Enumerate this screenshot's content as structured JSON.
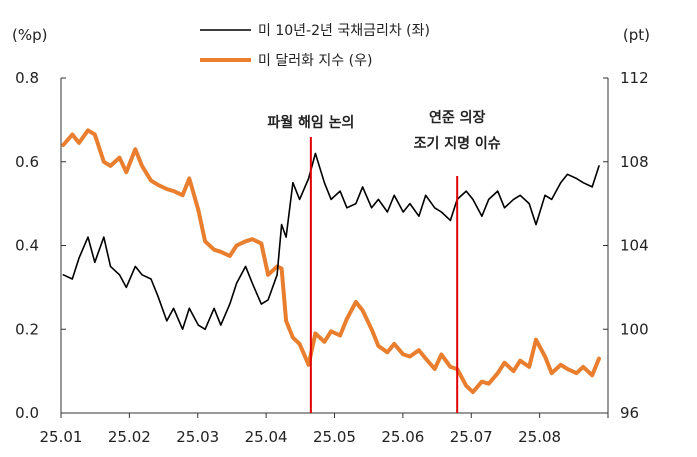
{
  "chart_data": {
    "type": "line",
    "left_unit": "(%p)",
    "right_unit": "(pt)",
    "x_tick_labels": [
      "25.01",
      "25.02",
      "25.03",
      "25.04",
      "25.05",
      "25.06",
      "25.07",
      "25.08"
    ],
    "y_left": {
      "min": 0.0,
      "max": 0.8,
      "ticks": [
        0.0,
        0.2,
        0.4,
        0.6,
        0.8
      ],
      "labels": [
        "0.0",
        "0.2",
        "0.4",
        "0.6",
        "0.8"
      ]
    },
    "y_right": {
      "min": 96,
      "max": 112,
      "ticks": [
        96,
        100,
        104,
        108,
        112
      ],
      "labels": [
        "96",
        "100",
        "104",
        "108",
        "112"
      ]
    },
    "grid": false,
    "legend_position": "top-center",
    "series": [
      {
        "name": "미 10년-2년 국채금리차 (좌)",
        "axis": "left",
        "color": "#000000",
        "x": [
          "2025-01-02",
          "2025-01-06",
          "2025-01-09",
          "2025-01-13",
          "2025-01-16",
          "2025-01-20",
          "2025-01-23",
          "2025-01-27",
          "2025-01-30",
          "2025-02-03",
          "2025-02-06",
          "2025-02-10",
          "2025-02-13",
          "2025-02-17",
          "2025-02-20",
          "2025-02-24",
          "2025-02-27",
          "2025-03-03",
          "2025-03-06",
          "2025-03-10",
          "2025-03-13",
          "2025-03-17",
          "2025-03-20",
          "2025-03-24",
          "2025-03-27",
          "2025-03-31",
          "2025-04-03",
          "2025-04-07",
          "2025-04-09",
          "2025-04-11",
          "2025-04-14",
          "2025-04-17",
          "2025-04-21",
          "2025-04-24",
          "2025-04-28",
          "2025-05-01",
          "2025-05-05",
          "2025-05-08",
          "2025-05-12",
          "2025-05-15",
          "2025-05-19",
          "2025-05-22",
          "2025-05-26",
          "2025-05-29",
          "2025-06-02",
          "2025-06-05",
          "2025-06-09",
          "2025-06-12",
          "2025-06-16",
          "2025-06-19",
          "2025-06-23",
          "2025-06-26",
          "2025-06-30",
          "2025-07-03",
          "2025-07-07",
          "2025-07-10",
          "2025-07-14",
          "2025-07-17",
          "2025-07-21",
          "2025-07-24",
          "2025-07-28",
          "2025-07-31",
          "2025-08-04",
          "2025-08-07",
          "2025-08-11",
          "2025-08-14",
          "2025-08-18",
          "2025-08-21",
          "2025-08-25",
          "2025-08-28"
        ],
        "y": [
          0.33,
          0.32,
          0.37,
          0.42,
          0.36,
          0.42,
          0.35,
          0.33,
          0.3,
          0.35,
          0.33,
          0.32,
          0.28,
          0.22,
          0.25,
          0.2,
          0.25,
          0.21,
          0.2,
          0.25,
          0.21,
          0.26,
          0.31,
          0.35,
          0.31,
          0.26,
          0.27,
          0.33,
          0.45,
          0.42,
          0.55,
          0.51,
          0.56,
          0.62,
          0.55,
          0.51,
          0.53,
          0.49,
          0.5,
          0.54,
          0.49,
          0.51,
          0.48,
          0.52,
          0.48,
          0.5,
          0.47,
          0.52,
          0.49,
          0.48,
          0.46,
          0.51,
          0.53,
          0.51,
          0.47,
          0.51,
          0.53,
          0.49,
          0.51,
          0.52,
          0.5,
          0.45,
          0.52,
          0.51,
          0.55,
          0.57,
          0.56,
          0.55,
          0.54,
          0.59
        ]
      },
      {
        "name": "미 달러화 지수 (우)",
        "axis": "right",
        "color": "#e87e2e",
        "x": [
          "2025-01-02",
          "2025-01-06",
          "2025-01-09",
          "2025-01-13",
          "2025-01-16",
          "2025-01-20",
          "2025-01-23",
          "2025-01-27",
          "2025-01-30",
          "2025-02-03",
          "2025-02-06",
          "2025-02-10",
          "2025-02-13",
          "2025-02-17",
          "2025-02-20",
          "2025-02-24",
          "2025-02-27",
          "2025-03-03",
          "2025-03-06",
          "2025-03-10",
          "2025-03-13",
          "2025-03-17",
          "2025-03-20",
          "2025-03-24",
          "2025-03-27",
          "2025-03-31",
          "2025-04-03",
          "2025-04-07",
          "2025-04-09",
          "2025-04-11",
          "2025-04-14",
          "2025-04-17",
          "2025-04-21",
          "2025-04-24",
          "2025-04-28",
          "2025-05-01",
          "2025-05-05",
          "2025-05-08",
          "2025-05-12",
          "2025-05-15",
          "2025-05-19",
          "2025-05-22",
          "2025-05-26",
          "2025-05-29",
          "2025-06-02",
          "2025-06-05",
          "2025-06-09",
          "2025-06-12",
          "2025-06-16",
          "2025-06-19",
          "2025-06-23",
          "2025-06-26",
          "2025-06-30",
          "2025-07-03",
          "2025-07-07",
          "2025-07-10",
          "2025-07-14",
          "2025-07-17",
          "2025-07-21",
          "2025-07-24",
          "2025-07-28",
          "2025-07-31",
          "2025-08-04",
          "2025-08-07",
          "2025-08-11",
          "2025-08-14",
          "2025-08-18",
          "2025-08-21",
          "2025-08-25",
          "2025-08-28"
        ],
        "y": [
          108.8,
          109.3,
          108.9,
          109.5,
          109.3,
          108.0,
          107.8,
          108.2,
          107.5,
          108.6,
          107.8,
          107.1,
          106.9,
          106.7,
          106.6,
          106.4,
          107.2,
          105.7,
          104.2,
          103.8,
          103.7,
          103.5,
          104.0,
          104.2,
          104.3,
          104.1,
          102.6,
          103.0,
          102.9,
          100.4,
          99.6,
          99.3,
          98.3,
          99.8,
          99.4,
          99.9,
          99.7,
          100.5,
          101.3,
          100.9,
          100.0,
          99.2,
          98.9,
          99.3,
          98.8,
          98.7,
          99.0,
          98.6,
          98.1,
          98.8,
          98.2,
          98.1,
          97.3,
          97.0,
          97.5,
          97.4,
          97.9,
          98.4,
          98.0,
          98.5,
          98.2,
          99.5,
          98.7,
          97.9,
          98.3,
          98.1,
          97.9,
          98.2,
          97.8,
          98.6
        ]
      }
    ],
    "annotations": [
      {
        "lines": [
          "파월 해임 논의"
        ],
        "date": "2025-04-22",
        "color": "#e00000"
      },
      {
        "lines": [
          "연준 의장",
          "조기 지명 이슈"
        ],
        "date": "2025-06-26",
        "color": "#e00000"
      }
    ]
  }
}
